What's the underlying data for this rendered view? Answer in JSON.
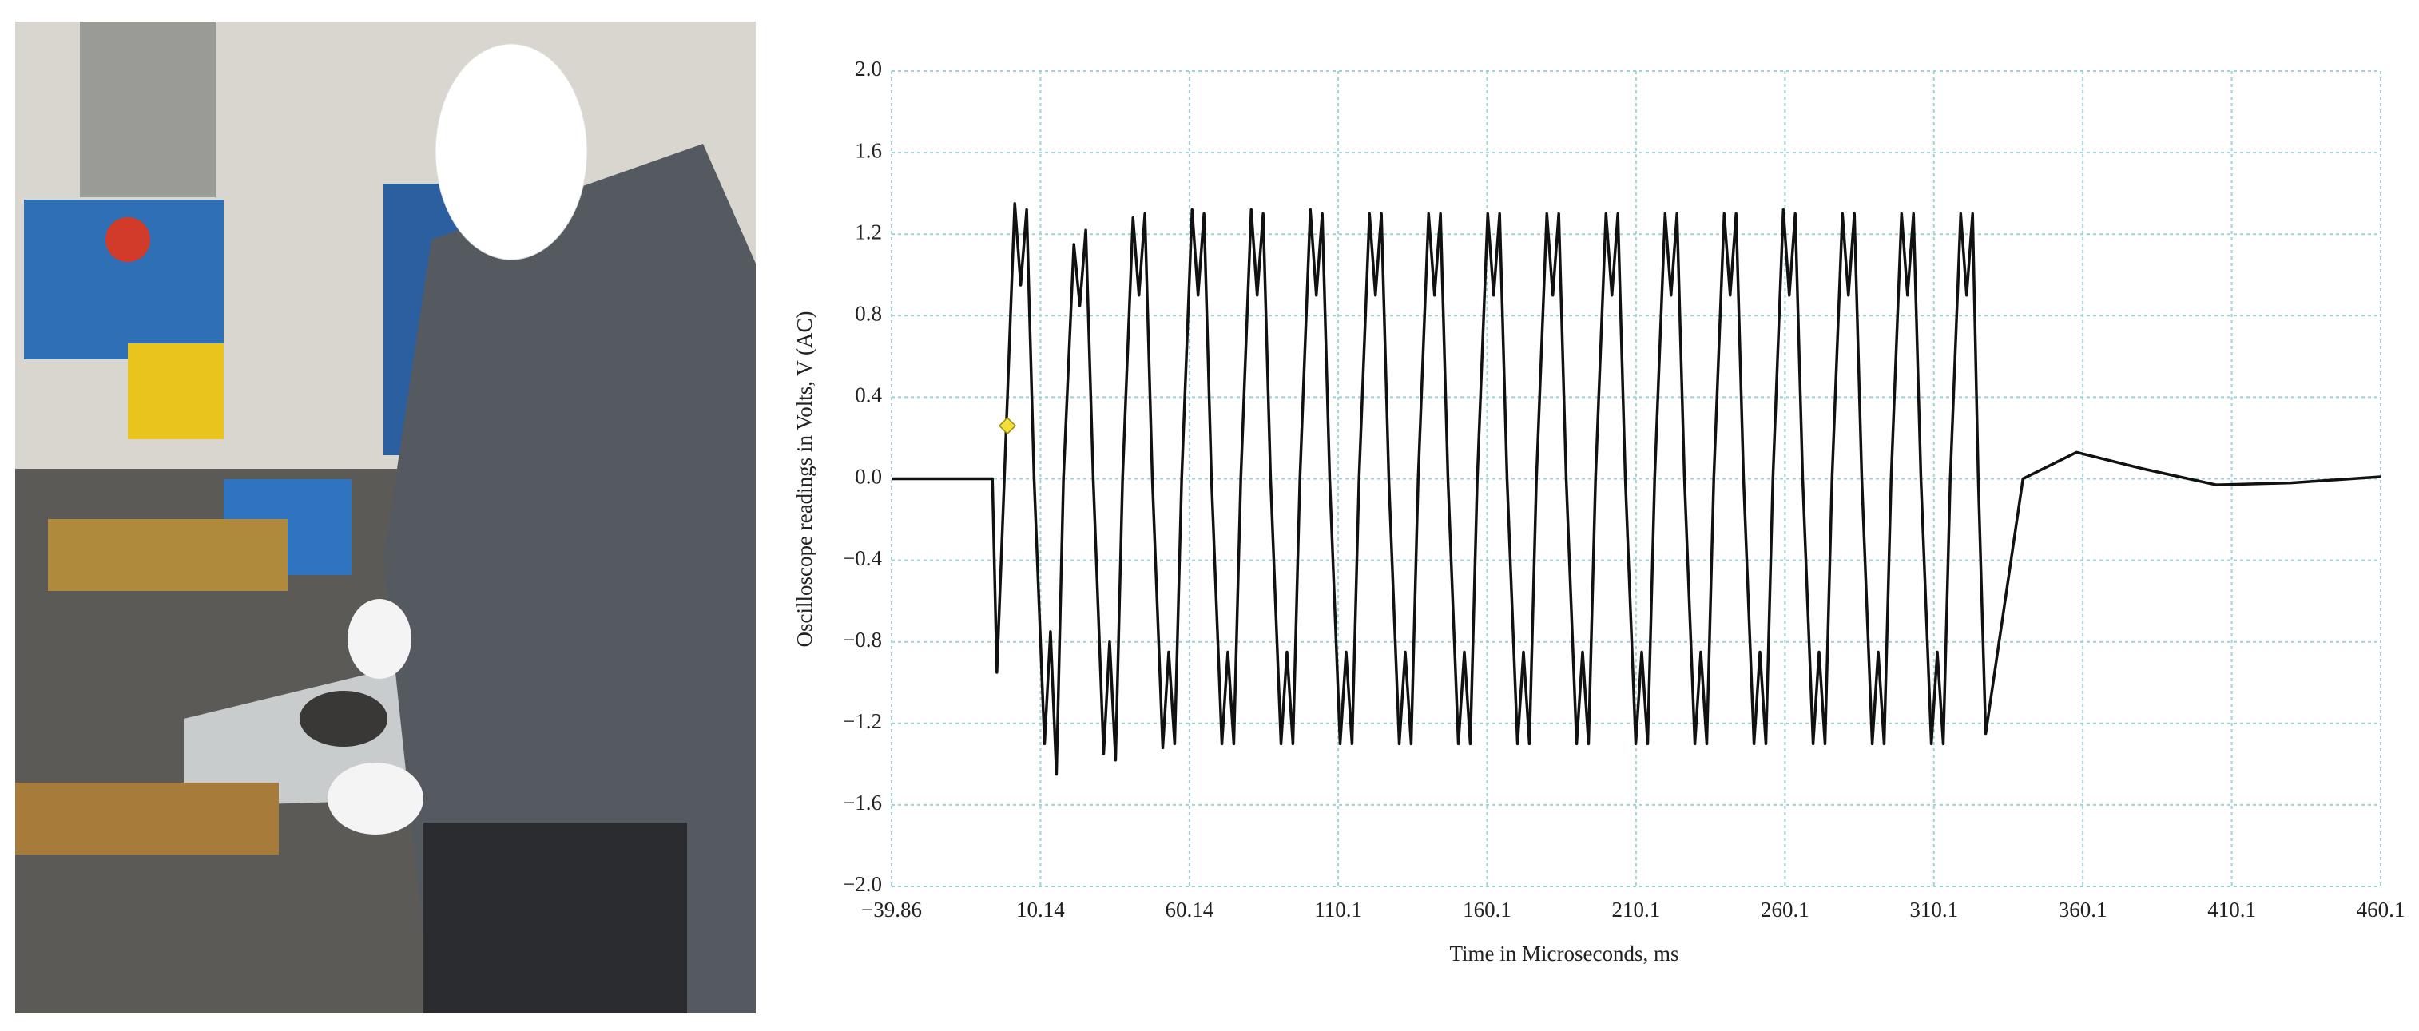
{
  "chart_data": {
    "type": "line",
    "xlabel": "Time in Microseconds, ms",
    "ylabel": "Oscilloscope readings in Volts, V (AC)",
    "xlim": [
      -39.86,
      460.1
    ],
    "ylim": [
      -2,
      2
    ],
    "xticks": [
      {
        "value": -39.86,
        "label": "−39.86"
      },
      10.14,
      60.14,
      110.1,
      160.1,
      210.1,
      260.1,
      310.1,
      360.1,
      410.1,
      460.1
    ],
    "yticks": [
      {
        "value": -2,
        "label": "−2.0"
      },
      {
        "value": -1.6,
        "label": "−1.6"
      },
      {
        "value": -1.2,
        "label": "−1.2"
      },
      {
        "value": -0.8,
        "label": "−0.8"
      },
      {
        "value": -0.4,
        "label": "−0.4"
      },
      {
        "value": 0,
        "label": "0.0"
      },
      0.4,
      0.8,
      1.2,
      1.6,
      {
        "value": 2,
        "label": "2.0"
      }
    ],
    "grid": true,
    "series": [
      {
        "color": "#111111",
        "x": [
          -39.86,
          -6,
          -4.5,
          -2,
          1.5,
          3.5,
          5.5,
          8,
          11.5,
          13.5,
          15.5,
          17.85,
          21.35,
          23.35,
          25.35,
          27.85,
          31.35,
          33.35,
          35.35,
          37.7,
          41.2,
          43.2,
          45.2,
          47.7,
          51.2,
          53.2,
          55.2,
          57.55,
          61.05,
          63.05,
          65.05,
          67.55,
          71.05,
          73.05,
          75.05,
          77.4,
          80.9,
          82.9,
          84.9,
          87.4,
          90.9,
          92.9,
          94.9,
          97.25,
          100.75,
          102.75,
          104.75,
          107.25,
          110.75,
          112.75,
          114.75,
          117.1,
          120.6,
          122.6,
          124.6,
          127.1,
          130.6,
          132.6,
          134.6,
          136.95,
          140.45,
          142.45,
          144.45,
          146.95,
          150.45,
          152.45,
          154.45,
          156.8,
          160.3,
          162.3,
          164.3,
          166.8,
          170.3,
          172.3,
          174.3,
          176.65,
          180.15,
          182.15,
          184.15,
          186.65,
          190.15,
          192.15,
          194.15,
          196.5,
          200,
          202,
          204,
          206.5,
          210,
          212,
          214,
          216.35,
          219.85,
          221.85,
          223.85,
          226.35,
          229.85,
          231.85,
          233.85,
          236.2,
          239.7,
          241.7,
          243.7,
          246.2,
          249.7,
          251.7,
          253.7,
          256.05,
          259.55,
          261.55,
          263.55,
          266.05,
          269.55,
          271.55,
          273.55,
          275.9,
          279.4,
          281.4,
          283.4,
          285.9,
          289.4,
          291.4,
          293.4,
          295.75,
          299.25,
          301.25,
          303.25,
          305.75,
          309.25,
          311.25,
          313.25,
          315.6,
          319.1,
          321.1,
          323.1,
          325,
          327.5,
          340,
          358,
          380,
          405,
          430,
          460.1
        ],
        "values": [
          0,
          0,
          -0.95,
          0,
          1.35,
          0.95,
          1.32,
          0,
          -1.3,
          -0.75,
          -1.45,
          0,
          1.15,
          0.85,
          1.22,
          0,
          -1.35,
          -0.8,
          -1.38,
          0,
          1.28,
          0.9,
          1.3,
          0,
          -1.32,
          -0.85,
          -1.3,
          0,
          1.32,
          0.9,
          1.3,
          0,
          -1.3,
          -0.85,
          -1.3,
          0,
          1.32,
          0.9,
          1.3,
          0,
          -1.3,
          -0.85,
          -1.3,
          0,
          1.32,
          0.9,
          1.3,
          0,
          -1.3,
          -0.85,
          -1.3,
          0,
          1.3,
          0.9,
          1.3,
          0,
          -1.3,
          -0.85,
          -1.3,
          0,
          1.3,
          0.9,
          1.3,
          0,
          -1.3,
          -0.85,
          -1.3,
          0,
          1.3,
          0.9,
          1.3,
          0,
          -1.3,
          -0.85,
          -1.3,
          0,
          1.3,
          0.9,
          1.3,
          0,
          -1.3,
          -0.85,
          -1.3,
          0,
          1.3,
          0.9,
          1.3,
          0,
          -1.3,
          -0.85,
          -1.3,
          0,
          1.3,
          0.9,
          1.3,
          0,
          -1.3,
          -0.85,
          -1.3,
          0,
          1.3,
          0.9,
          1.3,
          0,
          -1.3,
          -0.85,
          -1.3,
          0,
          1.32,
          0.9,
          1.3,
          0,
          -1.3,
          -0.85,
          -1.3,
          0,
          1.3,
          0.9,
          1.3,
          0,
          -1.3,
          -0.85,
          -1.3,
          0,
          1.3,
          0.9,
          1.3,
          0,
          -1.3,
          -0.85,
          -1.3,
          0,
          1.3,
          0.9,
          1.3,
          0,
          -1.25,
          0,
          0.13,
          0.05,
          -0.03,
          -0.02,
          0.01
        ]
      }
    ],
    "marker": {
      "x": -0.97,
      "y": 0.26,
      "color": "#f2df3a"
    }
  }
}
